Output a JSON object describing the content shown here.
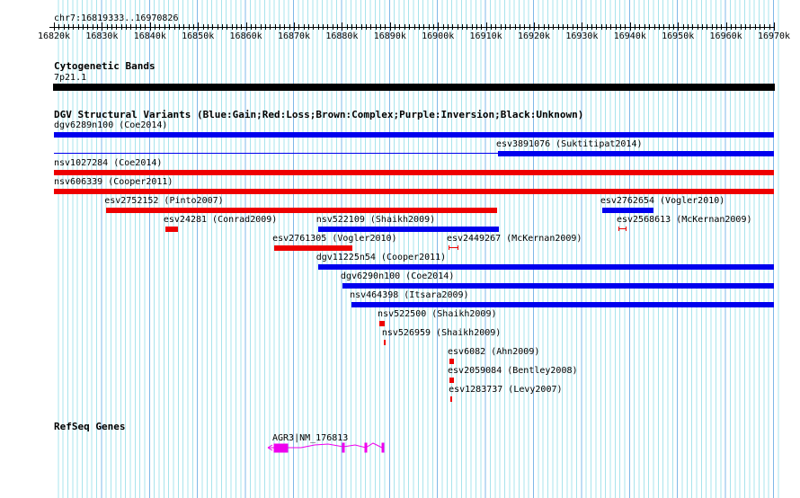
{
  "ruler": {
    "position": "chr7:16819333..16970826",
    "ticks": [
      "16820k",
      "16830k",
      "16840k",
      "16850k",
      "16860k",
      "16870k",
      "16880k",
      "16890k",
      "16900k",
      "16910k",
      "16920k",
      "16930k",
      "16940k",
      "16950k",
      "16960k",
      "16970k"
    ]
  },
  "cyto": {
    "title": "Cytogenetic Bands",
    "band": "7p21.1"
  },
  "dgv": {
    "title": "DGV Structural Variants (Blue:Gain;Red:Loss;Brown:Complex;Purple:Inversion;Black:Unknown)",
    "colors": {
      "gain": "#0000ee",
      "loss": "#ee0000"
    },
    "features": [
      {
        "label": "dgv6289n100 (Coe2014)",
        "type": "gain",
        "start": 16820,
        "end": 16970
      },
      {
        "label": "esv3891076 (Suktitipat2014)",
        "type": "gain",
        "start": 16912.5,
        "end": 16970,
        "thin_start": 16820
      },
      {
        "label": "nsv1027284 (Coe2014)",
        "type": "loss",
        "start": 16820,
        "end": 16970
      },
      {
        "label": "nsv606339 (Cooper2011)",
        "type": "loss",
        "start": 16820,
        "end": 16970
      },
      {
        "label": "esv2752152 (Pinto2007)",
        "type": "loss",
        "start": 16830.9,
        "end": 16912.3
      },
      {
        "label": "esv2762654 (Vogler2010)",
        "type": "gain",
        "start": 16934.2,
        "end": 16944.9
      },
      {
        "label": "esv24281 (Conrad2009)",
        "type": "loss",
        "start": 16843.2,
        "end": 16845.8
      },
      {
        "label": "nsv522109 (Shaikh2009)",
        "type": "gain",
        "start": 16875,
        "end": 16912.7
      },
      {
        "label": "esv2568613 (McKernan2009)",
        "type": "loss",
        "start": 16937.6,
        "end": 16939.3,
        "ibar": true
      },
      {
        "label": "esv2761305 (Vogler2010)",
        "type": "loss",
        "start": 16865.9,
        "end": 16882.2
      },
      {
        "label": "esv2449267 (McKernan2009)",
        "type": "loss",
        "start": 16902.2,
        "end": 16904.3,
        "ibar": true
      },
      {
        "label": "dgv11225n54 (Cooper2011)",
        "type": "gain",
        "start": 16875,
        "end": 16970
      },
      {
        "label": "dgv6290n100 (Coe2014)",
        "type": "gain",
        "start": 16880.1,
        "end": 16970
      },
      {
        "label": "nsv464398 (Itsara2009)",
        "type": "gain",
        "start": 16882,
        "end": 16970
      },
      {
        "label": "nsv522500 (Shaikh2009)",
        "type": "loss",
        "start": 16887.8,
        "end": 16888.9
      },
      {
        "label": "nsv526959 (Shaikh2009)",
        "type": "loss",
        "start": 16888.7,
        "end": 16889.1
      },
      {
        "label": "esv6082 (Ahn2009)",
        "type": "loss",
        "start": 16902.4,
        "end": 16903.3
      },
      {
        "label": "esv2059084 (Bentley2008)",
        "type": "loss",
        "start": 16902.4,
        "end": 16903.3
      },
      {
        "label": "esv1283737 (Levy2007)",
        "type": "loss",
        "start": 16902.6,
        "end": 16903
      }
    ]
  },
  "refseq": {
    "title": "RefSeq Genes",
    "gene": "AGR3|NM_176813",
    "color": "#ee00ee"
  }
}
